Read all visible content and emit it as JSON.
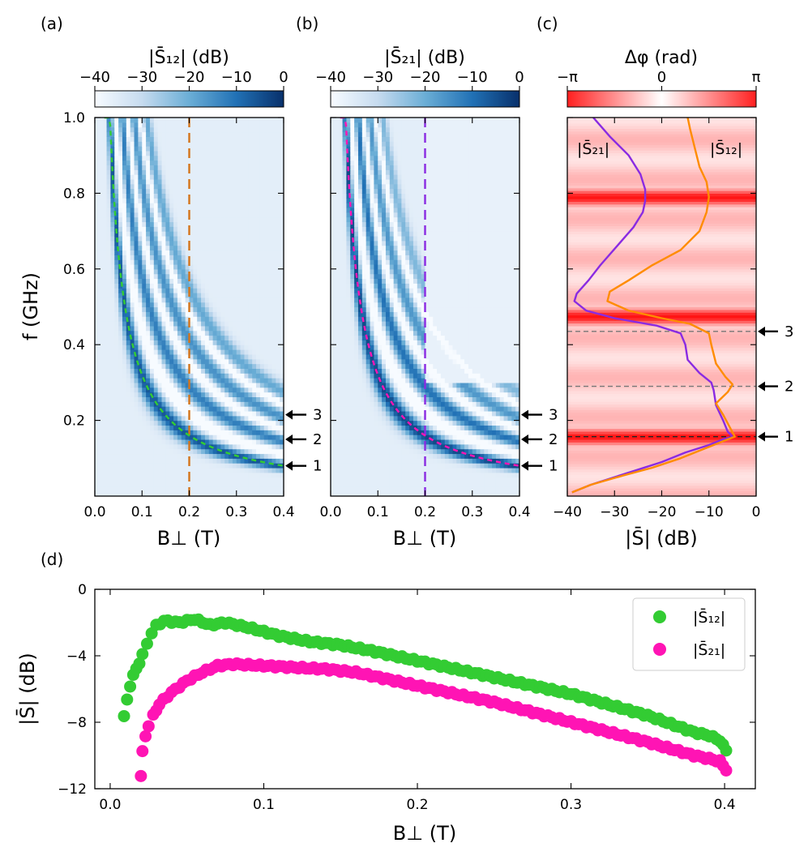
{
  "panel_labels": {
    "a": "(a)",
    "b": "(b)",
    "c": "(c)",
    "d": "(d)"
  },
  "colors": {
    "blue_dark": "#08306b",
    "blue_mid": "#4a90c8",
    "green": "#33cc33",
    "magenta": "#ff14b4",
    "orange": "#ff8c00",
    "purple": "#8a2be2",
    "red": "#ff0000",
    "marker_orange": "#d4741a"
  },
  "annotations": {
    "peak_1": "1",
    "peak_2": "2",
    "peak_3": "3"
  },
  "chart_data": [
    {
      "id": "a",
      "type": "heatmap",
      "colorbar_title": "|S̄₁₂| (dB)",
      "colorbar_ticks": [
        "−40",
        "−30",
        "−20",
        "−10",
        "0"
      ],
      "colorbar_range": [
        -40,
        0
      ],
      "xlabel": "B⊥ (T)",
      "ylabel": "f (GHz)",
      "xlim": [
        0,
        0.4
      ],
      "ylim": [
        0,
        1.0
      ],
      "xticks": [
        "0.0",
        "0.1",
        "0.2",
        "0.3",
        "0.4"
      ],
      "yticks": [
        "0.2",
        "0.4",
        "0.6",
        "0.8",
        "1.0"
      ],
      "vertical_marker_T": 0.2,
      "dashed_fit": {
        "curve": "f ≈ 0.032 / B⊥",
        "color": "green"
      }
    },
    {
      "id": "b",
      "type": "heatmap",
      "colorbar_title": "|S̄₂₁| (dB)",
      "colorbar_ticks": [
        "−40",
        "−30",
        "−20",
        "−10",
        "0"
      ],
      "colorbar_range": [
        -40,
        0
      ],
      "xlabel": "B⊥ (T)",
      "xlim": [
        0,
        0.4
      ],
      "ylim": [
        0,
        1.0
      ],
      "xticks": [
        "0.0",
        "0.1",
        "0.2",
        "0.3",
        "0.4"
      ],
      "vertical_marker_T": 0.2,
      "dashed_fit": {
        "curve": "f ≈ 0.032 / B⊥",
        "color": "magenta"
      }
    },
    {
      "id": "c",
      "type": "line",
      "colorbar_title": "Δφ (rad)",
      "colorbar_ticks": [
        "−π",
        "0",
        "π"
      ],
      "xlabel": "|S̄| (dB)",
      "xlim": [
        -40,
        0
      ],
      "ylim": [
        0,
        1.0
      ],
      "xticks": [
        "−40",
        "−30",
        "−20",
        "−10",
        "0"
      ],
      "legend": {
        "s21": "|S̄₂₁|",
        "s12": "|S̄₁₂|"
      },
      "phase_bands_GHz": [
        0.157,
        0.475,
        0.79
      ],
      "mode_lines_GHz": [
        0.157,
        0.29,
        0.435
      ],
      "series": [
        {
          "name": "|S̄₂₁|",
          "color": "purple",
          "points": [
            [
              -39,
              0.01
            ],
            [
              -35,
              0.03
            ],
            [
              -30,
              0.05
            ],
            [
              -25,
              0.07
            ],
            [
              -20,
              0.09
            ],
            [
              -15,
              0.115
            ],
            [
              -10,
              0.135
            ],
            [
              -7,
              0.15
            ],
            [
              -5,
              0.157
            ],
            [
              -6,
              0.17
            ],
            [
              -7,
              0.2
            ],
            [
              -8.5,
              0.24
            ],
            [
              -9,
              0.28
            ],
            [
              -9.5,
              0.3
            ],
            [
              -12,
              0.325
            ],
            [
              -14.5,
              0.36
            ],
            [
              -15,
              0.4
            ],
            [
              -16,
              0.43
            ],
            [
              -21,
              0.45
            ],
            [
              -30,
              0.47
            ],
            [
              -36,
              0.49
            ],
            [
              -38.5,
              0.515
            ],
            [
              -38,
              0.535
            ],
            [
              -35.5,
              0.57
            ],
            [
              -33,
              0.61
            ],
            [
              -29.5,
              0.66
            ],
            [
              -26,
              0.71
            ],
            [
              -24,
              0.75
            ],
            [
              -23.5,
              0.78
            ],
            [
              -23.5,
              0.81
            ],
            [
              -24.5,
              0.85
            ],
            [
              -27,
              0.9
            ],
            [
              -31,
              0.95
            ],
            [
              -34.5,
              1.0
            ]
          ]
        },
        {
          "name": "|S̄₁₂|",
          "color": "orange",
          "points": [
            [
              -39,
              0.01
            ],
            [
              -35,
              0.03
            ],
            [
              -28,
              0.055
            ],
            [
              -22,
              0.075
            ],
            [
              -16,
              0.1
            ],
            [
              -11,
              0.125
            ],
            [
              -7,
              0.145
            ],
            [
              -4.5,
              0.157
            ],
            [
              -5.5,
              0.18
            ],
            [
              -7,
              0.215
            ],
            [
              -8.5,
              0.245
            ],
            [
              -6,
              0.275
            ],
            [
              -5,
              0.295
            ],
            [
              -6.5,
              0.315
            ],
            [
              -8.5,
              0.35
            ],
            [
              -9.5,
              0.4
            ],
            [
              -10,
              0.43
            ],
            [
              -14,
              0.455
            ],
            [
              -20,
              0.47
            ],
            [
              -27,
              0.49
            ],
            [
              -31.5,
              0.515
            ],
            [
              -31,
              0.54
            ],
            [
              -27,
              0.57
            ],
            [
              -22,
              0.61
            ],
            [
              -16,
              0.65
            ],
            [
              -12,
              0.7
            ],
            [
              -10.5,
              0.75
            ],
            [
              -10,
              0.79
            ],
            [
              -10.5,
              0.83
            ],
            [
              -12,
              0.87
            ],
            [
              -13,
              0.92
            ],
            [
              -14,
              0.97
            ],
            [
              -14.5,
              1.0
            ]
          ]
        }
      ]
    },
    {
      "id": "d",
      "type": "scatter",
      "xlabel": "B⊥ (T)",
      "ylabel": "|S̄| (dB)",
      "xlim": [
        -0.01,
        0.42
      ],
      "ylim": [
        -12,
        0
      ],
      "xticks": [
        "0.0",
        "0.1",
        "0.2",
        "0.3",
        "0.4"
      ],
      "yticks": [
        "0",
        "−4",
        "−8",
        "−12"
      ],
      "legend_position": "top-right",
      "series": [
        {
          "name": "|S̄₁₂|",
          "color": "green",
          "points": [
            [
              0.009,
              -7.7
            ],
            [
              0.011,
              -6.6
            ],
            [
              0.013,
              -5.8
            ],
            [
              0.015,
              -5.2
            ],
            [
              0.017,
              -4.8
            ],
            [
              0.019,
              -4.4
            ],
            [
              0.021,
              -3.9
            ],
            [
              0.024,
              -3.3
            ],
            [
              0.027,
              -2.6
            ],
            [
              0.03,
              -2.2
            ],
            [
              0.035,
              -1.9
            ],
            [
              0.045,
              -2.0
            ],
            [
              0.055,
              -1.8
            ],
            [
              0.065,
              -2.15
            ],
            [
              0.075,
              -2.0
            ],
            [
              0.09,
              -2.3
            ],
            [
              0.11,
              -2.8
            ],
            [
              0.13,
              -3.15
            ],
            [
              0.15,
              -3.35
            ],
            [
              0.17,
              -3.7
            ],
            [
              0.2,
              -4.3
            ],
            [
              0.25,
              -5.3
            ],
            [
              0.3,
              -6.3
            ],
            [
              0.35,
              -7.6
            ],
            [
              0.38,
              -8.6
            ],
            [
              0.39,
              -8.8
            ],
            [
              0.397,
              -9.1
            ],
            [
              0.401,
              -9.7
            ]
          ]
        },
        {
          "name": "|S̄₂₁|",
          "color": "magenta",
          "points": [
            [
              0.02,
              -11.3
            ],
            [
              0.021,
              -9.8
            ],
            [
              0.023,
              -8.8
            ],
            [
              0.025,
              -8.2
            ],
            [
              0.028,
              -7.6
            ],
            [
              0.032,
              -6.9
            ],
            [
              0.04,
              -6.2
            ],
            [
              0.05,
              -5.5
            ],
            [
              0.06,
              -5.0
            ],
            [
              0.07,
              -4.6
            ],
            [
              0.08,
              -4.5
            ],
            [
              0.1,
              -4.6
            ],
            [
              0.12,
              -4.7
            ],
            [
              0.14,
              -4.8
            ],
            [
              0.16,
              -5.0
            ],
            [
              0.18,
              -5.4
            ],
            [
              0.2,
              -5.8
            ],
            [
              0.25,
              -6.8
            ],
            [
              0.3,
              -8.0
            ],
            [
              0.35,
              -9.2
            ],
            [
              0.38,
              -10.0
            ],
            [
              0.39,
              -10.2
            ],
            [
              0.397,
              -10.35
            ],
            [
              0.401,
              -10.9
            ]
          ]
        }
      ]
    }
  ]
}
